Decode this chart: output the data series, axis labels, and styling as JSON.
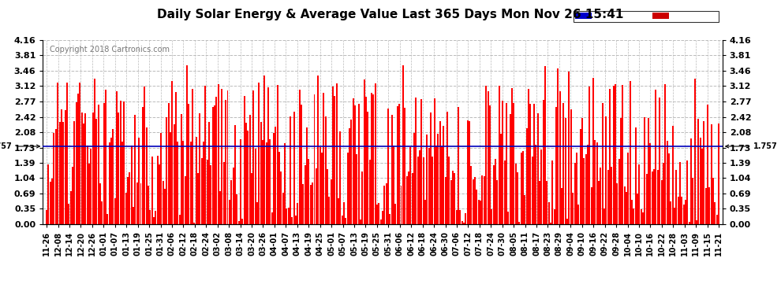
{
  "title": "Daily Solar Energy & Average Value Last 365 Days Mon Nov 26 15:41",
  "copyright": "Copyright 2018 Cartronics.com",
  "average_value": 1.757,
  "average_label": "1.757",
  "bar_color": "#FF0000",
  "average_line_color": "#0000BB",
  "background_color": "#FFFFFF",
  "plot_bg_color": "#FFFFFF",
  "yticks": [
    0.0,
    0.35,
    0.69,
    1.04,
    1.39,
    1.73,
    2.08,
    2.42,
    2.77,
    3.12,
    3.46,
    3.81,
    4.16
  ],
  "ylim": [
    0.0,
    4.16
  ],
  "xtick_labels": [
    "11-26",
    "12-08",
    "12-14",
    "12-20",
    "12-26",
    "01-01",
    "01-07",
    "01-13",
    "01-19",
    "01-25",
    "01-31",
    "02-06",
    "02-12",
    "02-18",
    "02-24",
    "03-02",
    "03-08",
    "03-14",
    "03-20",
    "03-26",
    "04-01",
    "04-07",
    "04-13",
    "04-19",
    "04-25",
    "05-01",
    "05-07",
    "05-13",
    "05-19",
    "05-25",
    "05-31",
    "06-06",
    "06-12",
    "06-18",
    "06-24",
    "06-30",
    "07-06",
    "07-12",
    "07-18",
    "07-24",
    "07-30",
    "08-05",
    "08-11",
    "08-17",
    "08-23",
    "08-29",
    "09-04",
    "09-10",
    "09-16",
    "09-22",
    "09-28",
    "10-04",
    "10-10",
    "10-16",
    "10-22",
    "10-28",
    "11-03",
    "11-09",
    "11-15",
    "11-21"
  ],
  "legend_avg_color": "#0000CC",
  "legend_daily_color": "#CC0000",
  "grid_color": "#BBBBBB",
  "grid_style": "--"
}
